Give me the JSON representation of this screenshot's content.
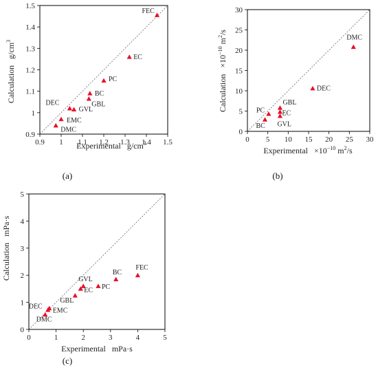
{
  "chart_data": [
    {
      "type": "scatter",
      "panel_label": "(a)",
      "xlabel": "Experimental",
      "xunit": "g/cm",
      "xunit_sup": "3",
      "ylabel": "Calculation",
      "yunit": "g/cm",
      "yunit_sup": "3",
      "xlim": [
        0.9,
        1.5
      ],
      "ylim": [
        0.9,
        1.5
      ],
      "xticks": [
        "0.9",
        "1",
        "1.1",
        "1.2",
        "1.3",
        "1.4",
        "1.5"
      ],
      "yticks": [
        "0.9",
        "1",
        "1.1",
        "1.2",
        "1.3",
        "1.4",
        "1.5"
      ],
      "grid": false,
      "reference_line": "y = x",
      "marker_color": "#e8102a",
      "points": [
        {
          "label": "FEC",
          "x": 1.45,
          "y": 1.455
        },
        {
          "label": "EC",
          "x": 1.32,
          "y": 1.26
        },
        {
          "label": "PC",
          "x": 1.2,
          "y": 1.15
        },
        {
          "label": "BC",
          "x": 1.135,
          "y": 1.09
        },
        {
          "label": "GBL",
          "x": 1.13,
          "y": 1.065
        },
        {
          "label": "DEC",
          "x": 1.04,
          "y": 1.02
        },
        {
          "label": "GVL",
          "x": 1.06,
          "y": 1.015
        },
        {
          "label": "EMC",
          "x": 1.0,
          "y": 0.97
        },
        {
          "label": "DMC",
          "x": 0.975,
          "y": 0.94
        }
      ]
    },
    {
      "type": "scatter",
      "panel_label": "(b)",
      "xlabel": "Experimental",
      "xunit": "×10",
      "xunit_exp": "−10",
      "xunit_tail": " m",
      "xunit_tail_sup": "2",
      "xunit_end": "/s",
      "ylabel": "Calculation",
      "yunit": "×10",
      "yunit_exp": "−10",
      "yunit_tail": " m",
      "yunit_tail_sup": "2",
      "yunit_end": "/s",
      "xlim": [
        0,
        30
      ],
      "ylim": [
        0,
        30
      ],
      "xticks": [
        "0",
        "5",
        "10",
        "15",
        "20",
        "25",
        "30"
      ],
      "yticks": [
        "0",
        "5",
        "10",
        "15",
        "20",
        "25",
        "30"
      ],
      "grid": false,
      "reference_line": "y = x",
      "marker_color": "#e8102a",
      "points": [
        {
          "label": "DMC",
          "x": 26,
          "y": 20.8
        },
        {
          "label": "DEC",
          "x": 16,
          "y": 10.6
        },
        {
          "label": "GBL",
          "x": 8,
          "y": 5.8
        },
        {
          "label": "EC",
          "x": 8,
          "y": 4.8
        },
        {
          "label": "GVL",
          "x": 8,
          "y": 3.8
        },
        {
          "label": "PC",
          "x": 5.2,
          "y": 4.3
        },
        {
          "label": "BC",
          "x": 4.3,
          "y": 2.9
        }
      ]
    },
    {
      "type": "scatter",
      "panel_label": "(c)",
      "xlabel": "Experimental",
      "xunit": "mPa·s",
      "ylabel": "Calculation",
      "yunit": "mPa·s",
      "xlim": [
        0,
        5
      ],
      "ylim": [
        0,
        5
      ],
      "xticks": [
        "0",
        "1",
        "2",
        "3",
        "4",
        "5"
      ],
      "yticks": [
        "0",
        "1",
        "2",
        "3",
        "4",
        "5"
      ],
      "grid": false,
      "reference_line": "y = x",
      "marker_color": "#e8102a",
      "points": [
        {
          "label": "FEC",
          "x": 4.0,
          "y": 2.0
        },
        {
          "label": "BC",
          "x": 3.2,
          "y": 1.85
        },
        {
          "label": "PC",
          "x": 2.55,
          "y": 1.6
        },
        {
          "label": "GVL",
          "x": 2.0,
          "y": 1.6
        },
        {
          "label": "EC",
          "x": 1.9,
          "y": 1.5
        },
        {
          "label": "GBL",
          "x": 1.7,
          "y": 1.25
        },
        {
          "label": "EMC",
          "x": 0.75,
          "y": 0.78
        },
        {
          "label": "DEC",
          "x": 0.7,
          "y": 0.72
        },
        {
          "label": "DMC",
          "x": 0.6,
          "y": 0.55
        }
      ]
    }
  ]
}
